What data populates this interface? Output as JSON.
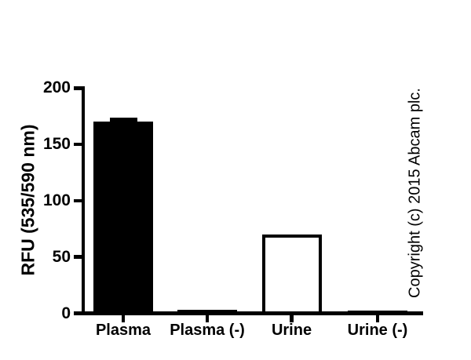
{
  "chart_data": {
    "type": "bar",
    "title": "",
    "xlabel": "",
    "ylabel": "RFU (535/590 nm)",
    "categories": [
      "Plasma",
      "Plasma (-)",
      "Urine",
      "Urine (-)"
    ],
    "values": [
      170,
      3,
      70,
      2.5
    ],
    "error_plus": [
      4,
      0,
      0,
      0
    ],
    "bar_fill": [
      "black",
      "black",
      "white",
      "black"
    ],
    "ylim": [
      0,
      200
    ],
    "yticks": [
      0,
      50,
      100,
      150,
      200
    ],
    "grid": false,
    "legend": null
  },
  "copyright": "Copyright (c) 2015 Abcam plc."
}
